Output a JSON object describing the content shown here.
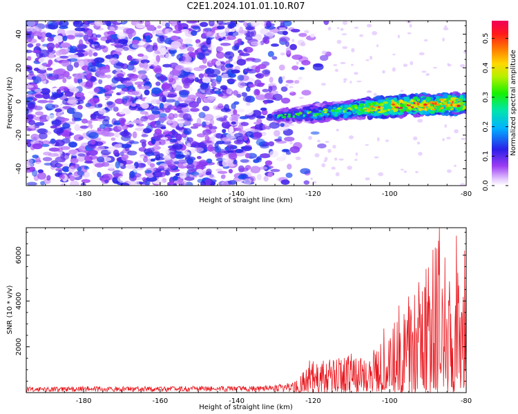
{
  "window": {
    "title": "C2E1.2024.101.01.10.R07"
  },
  "chart_data": [
    {
      "type": "heatmap",
      "title": "",
      "xlabel": "Height of straight line (km)",
      "ylabel": "Frequency (Hz)",
      "xlim": [
        -195,
        -80
      ],
      "ylim": [
        -50,
        48
      ],
      "x_ticks": [
        -180,
        -160,
        -140,
        -120,
        -100,
        -80
      ],
      "y_ticks": [
        -40,
        -20,
        0,
        20,
        40
      ],
      "x_tick_labels": [
        "-180",
        "-160",
        "-140",
        "-120",
        "-100",
        "-80"
      ],
      "y_tick_labels": [
        "-40",
        "-20",
        "0",
        "20",
        "40"
      ],
      "colorbar": {
        "label": "Normalized spectral amplitude",
        "range": [
          0.0,
          0.56
        ],
        "ticks": [
          0.0,
          0.1,
          0.2,
          0.3,
          0.4,
          0.5
        ],
        "tick_labels": [
          "0.0",
          "0.1",
          "0.2",
          "0.3",
          "0.4",
          "0.5"
        ]
      },
      "features": {
        "noise_region_x": [
          -195,
          -125
        ],
        "noise_amplitude_range": [
          0.0,
          0.15
        ],
        "signal_band_x": [
          -130,
          -80
        ],
        "signal_center_freq_at_x": [
          [
            -130,
            -9
          ],
          [
            -120,
            -7
          ],
          [
            -110,
            -5
          ],
          [
            -100,
            -3
          ],
          [
            -90,
            -2
          ],
          [
            -80,
            -1
          ]
        ],
        "signal_halfwidth_at_x": [
          [
            -130,
            3
          ],
          [
            -120,
            5
          ],
          [
            -110,
            5
          ],
          [
            -100,
            6
          ],
          [
            -90,
            6
          ],
          [
            -80,
            6
          ]
        ],
        "signal_peak_amplitude_range": [
          0.2,
          0.56
        ]
      },
      "grid": false
    },
    {
      "type": "line",
      "title": "",
      "xlabel": "Height of straight line (km)",
      "ylabel": "SNR (10 * v/v)",
      "xlim": [
        -195,
        -80
      ],
      "ylim": [
        0,
        7200
      ],
      "x_ticks": [
        -180,
        -160,
        -140,
        -120,
        -100,
        -80
      ],
      "y_ticks": [
        2000,
        4000,
        6000
      ],
      "x_tick_labels": [
        "-180",
        "-160",
        "-140",
        "-120",
        "-100",
        "-80"
      ],
      "y_tick_labels": [
        "2000",
        "4000",
        "6000"
      ],
      "series": [
        {
          "color": "#e8141b",
          "envelope_x": [
            -195,
            -180,
            -160,
            -140,
            -130,
            -125,
            -120,
            -115,
            -110,
            -105,
            -100,
            -95,
            -90,
            -87,
            -85,
            -82,
            -80
          ],
          "envelope_max_y": [
            250,
            280,
            280,
            280,
            320,
            500,
            1400,
            1500,
            1700,
            1700,
            2800,
            4200,
            5500,
            7200,
            5900,
            6800,
            6200
          ],
          "peaks": [
            {
              "x": -87,
              "y": 7200
            },
            {
              "x": -82.5,
              "y": 6850
            },
            {
              "x": -85.5,
              "y": 5900
            },
            {
              "x": -90.5,
              "y": 5400
            },
            {
              "x": -97.5,
              "y": 3800
            },
            {
              "x": -95,
              "y": 4200
            },
            {
              "x": -101.5,
              "y": 2800
            },
            {
              "x": -110,
              "y": 1700
            },
            {
              "x": -121,
              "y": 1400
            }
          ]
        }
      ],
      "grid": false
    }
  ]
}
